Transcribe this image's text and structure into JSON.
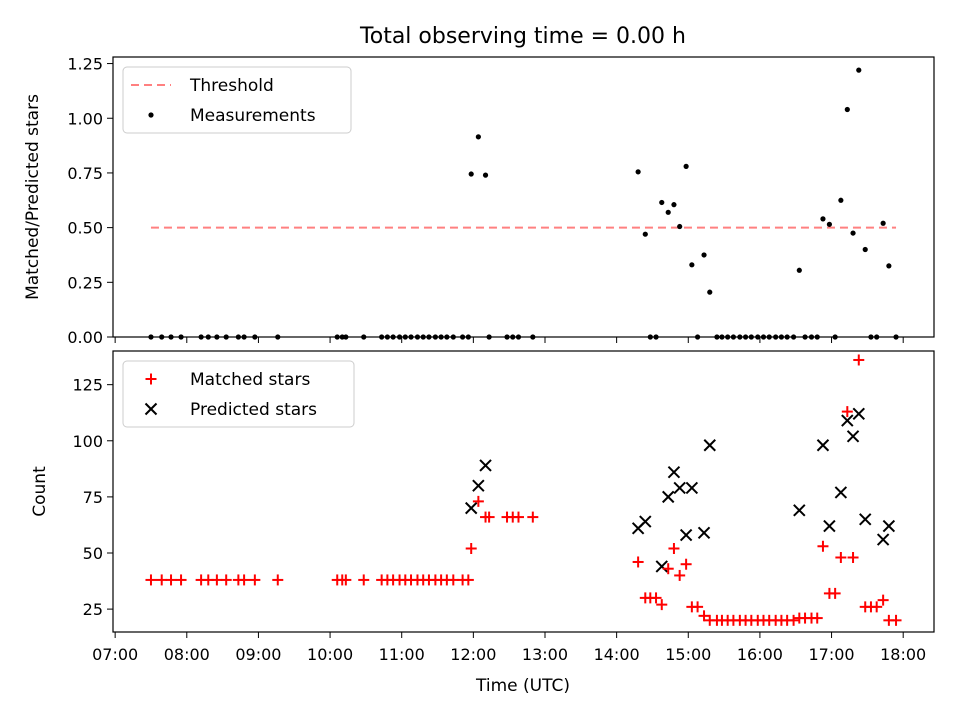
{
  "title": "Total observing time = 0.00 h",
  "xlabel": "Time (UTC)",
  "x_tick_labels": [
    "07:00",
    "08:00",
    "09:00",
    "10:00",
    "11:00",
    "12:00",
    "13:00",
    "14:00",
    "15:00",
    "16:00",
    "17:00",
    "18:00"
  ],
  "colors": {
    "threshold": "#ff8080",
    "measurements": "#000000",
    "matched": "#ff0000",
    "predicted": "#000000"
  },
  "chart_data": [
    {
      "type": "scatter",
      "panel": "top",
      "ylabel": "Matched/Predicted stars",
      "ylim": [
        0,
        1.28
      ],
      "y_tick_labels": [
        "0.00",
        "0.25",
        "0.50",
        "0.75",
        "1.00",
        "1.25"
      ],
      "x_unit": "hours UTC",
      "xlim": [
        6.97,
        18.43
      ],
      "legend": {
        "position": "top-left",
        "entries": [
          "Threshold",
          "Measurements"
        ]
      },
      "threshold": {
        "name": "Threshold",
        "y": 0.5,
        "x_range": [
          7.5,
          17.9
        ]
      },
      "series": [
        {
          "name": "Measurements",
          "points": [
            [
              7.5,
              0
            ],
            [
              7.65,
              0
            ],
            [
              7.78,
              0
            ],
            [
              7.92,
              0
            ],
            [
              8.2,
              0
            ],
            [
              8.3,
              0
            ],
            [
              8.42,
              0
            ],
            [
              8.55,
              0
            ],
            [
              8.72,
              0
            ],
            [
              8.8,
              0
            ],
            [
              8.95,
              0
            ],
            [
              9.27,
              0
            ],
            [
              10.1,
              0
            ],
            [
              10.17,
              0
            ],
            [
              10.22,
              0
            ],
            [
              10.47,
              0
            ],
            [
              10.72,
              0
            ],
            [
              10.8,
              0
            ],
            [
              10.88,
              0
            ],
            [
              10.97,
              0
            ],
            [
              11.05,
              0
            ],
            [
              11.13,
              0
            ],
            [
              11.22,
              0
            ],
            [
              11.3,
              0
            ],
            [
              11.38,
              0
            ],
            [
              11.47,
              0
            ],
            [
              11.55,
              0
            ],
            [
              11.63,
              0
            ],
            [
              11.72,
              0
            ],
            [
              11.85,
              0
            ],
            [
              11.93,
              0
            ],
            [
              11.97,
              0.745
            ],
            [
              12.07,
              0.915
            ],
            [
              12.17,
              0.74
            ],
            [
              12.22,
              0
            ],
            [
              12.47,
              0
            ],
            [
              12.55,
              0
            ],
            [
              12.63,
              0
            ],
            [
              12.83,
              0
            ],
            [
              14.3,
              0.755
            ],
            [
              14.4,
              0.47
            ],
            [
              14.47,
              0
            ],
            [
              14.55,
              0
            ],
            [
              14.63,
              0.615
            ],
            [
              14.72,
              0.57
            ],
            [
              14.8,
              0.605
            ],
            [
              14.88,
              0.505
            ],
            [
              14.97,
              0.78
            ],
            [
              15.05,
              0.33
            ],
            [
              15.13,
              0
            ],
            [
              15.22,
              0.375
            ],
            [
              15.3,
              0.205
            ],
            [
              15.4,
              0
            ],
            [
              15.47,
              0
            ],
            [
              15.55,
              0
            ],
            [
              15.63,
              0
            ],
            [
              15.72,
              0
            ],
            [
              15.8,
              0
            ],
            [
              15.88,
              0
            ],
            [
              15.97,
              0
            ],
            [
              16.05,
              0
            ],
            [
              16.13,
              0
            ],
            [
              16.22,
              0
            ],
            [
              16.3,
              0
            ],
            [
              16.38,
              0
            ],
            [
              16.47,
              0
            ],
            [
              16.55,
              0.305
            ],
            [
              16.63,
              0
            ],
            [
              16.72,
              0
            ],
            [
              16.8,
              0
            ],
            [
              16.88,
              0.54
            ],
            [
              16.97,
              0.515
            ],
            [
              17.05,
              0
            ],
            [
              17.13,
              0.625
            ],
            [
              17.22,
              1.04
            ],
            [
              17.3,
              0.475
            ],
            [
              17.38,
              1.22
            ],
            [
              17.47,
              0.4
            ],
            [
              17.55,
              0
            ],
            [
              17.63,
              0
            ],
            [
              17.72,
              0.52
            ],
            [
              17.8,
              0.325
            ],
            [
              17.9,
              0
            ]
          ]
        }
      ]
    },
    {
      "type": "scatter",
      "panel": "bottom",
      "ylabel": "Count",
      "ylim": [
        14.8,
        140
      ],
      "y_tick_labels": [
        "25",
        "50",
        "75",
        "100",
        "125"
      ],
      "x_unit": "hours UTC",
      "xlim": [
        6.97,
        18.43
      ],
      "legend": {
        "position": "top-left",
        "entries": [
          "Matched stars",
          "Predicted stars"
        ]
      },
      "series": [
        {
          "name": "Matched stars",
          "points": [
            [
              7.5,
              38
            ],
            [
              7.65,
              38
            ],
            [
              7.78,
              38
            ],
            [
              7.92,
              38
            ],
            [
              8.2,
              38
            ],
            [
              8.3,
              38
            ],
            [
              8.42,
              38
            ],
            [
              8.55,
              38
            ],
            [
              8.72,
              38
            ],
            [
              8.8,
              38
            ],
            [
              8.95,
              38
            ],
            [
              9.27,
              38
            ],
            [
              10.1,
              38
            ],
            [
              10.17,
              38
            ],
            [
              10.22,
              38
            ],
            [
              10.47,
              38
            ],
            [
              10.72,
              38
            ],
            [
              10.8,
              38
            ],
            [
              10.88,
              38
            ],
            [
              10.97,
              38
            ],
            [
              11.05,
              38
            ],
            [
              11.13,
              38
            ],
            [
              11.22,
              38
            ],
            [
              11.3,
              38
            ],
            [
              11.38,
              38
            ],
            [
              11.47,
              38
            ],
            [
              11.55,
              38
            ],
            [
              11.63,
              38
            ],
            [
              11.72,
              38
            ],
            [
              11.85,
              38
            ],
            [
              11.93,
              38
            ],
            [
              11.97,
              52
            ],
            [
              12.07,
              73
            ],
            [
              12.17,
              66
            ],
            [
              12.22,
              66
            ],
            [
              12.47,
              66
            ],
            [
              12.55,
              66
            ],
            [
              12.63,
              66
            ],
            [
              12.83,
              66
            ],
            [
              14.3,
              46
            ],
            [
              14.4,
              30
            ],
            [
              14.47,
              30
            ],
            [
              14.55,
              30
            ],
            [
              14.63,
              27
            ],
            [
              14.72,
              43
            ],
            [
              14.8,
              52
            ],
            [
              14.88,
              40
            ],
            [
              14.97,
              45
            ],
            [
              15.05,
              26
            ],
            [
              15.13,
              26
            ],
            [
              15.22,
              22
            ],
            [
              15.3,
              20
            ],
            [
              15.4,
              20
            ],
            [
              15.47,
              20
            ],
            [
              15.55,
              20
            ],
            [
              15.63,
              20
            ],
            [
              15.72,
              20
            ],
            [
              15.8,
              20
            ],
            [
              15.88,
              20
            ],
            [
              15.97,
              20
            ],
            [
              16.05,
              20
            ],
            [
              16.13,
              20
            ],
            [
              16.22,
              20
            ],
            [
              16.3,
              20
            ],
            [
              16.38,
              20
            ],
            [
              16.47,
              20
            ],
            [
              16.55,
              21
            ],
            [
              16.63,
              21
            ],
            [
              16.72,
              21
            ],
            [
              16.8,
              21
            ],
            [
              16.88,
              53
            ],
            [
              16.97,
              32
            ],
            [
              17.05,
              32
            ],
            [
              17.13,
              48
            ],
            [
              17.22,
              113
            ],
            [
              17.3,
              48
            ],
            [
              17.38,
              136
            ],
            [
              17.47,
              26
            ],
            [
              17.55,
              26
            ],
            [
              17.63,
              26
            ],
            [
              17.72,
              29
            ],
            [
              17.8,
              20
            ],
            [
              17.9,
              20
            ]
          ]
        },
        {
          "name": "Predicted stars",
          "points": [
            [
              11.97,
              70
            ],
            [
              12.07,
              80
            ],
            [
              12.17,
              89
            ],
            [
              14.3,
              61
            ],
            [
              14.4,
              64
            ],
            [
              14.63,
              44
            ],
            [
              14.72,
              75
            ],
            [
              14.8,
              86
            ],
            [
              14.88,
              79
            ],
            [
              14.97,
              58
            ],
            [
              15.05,
              79
            ],
            [
              15.22,
              59
            ],
            [
              15.3,
              98
            ],
            [
              16.55,
              69
            ],
            [
              16.88,
              98
            ],
            [
              16.97,
              62
            ],
            [
              17.13,
              77
            ],
            [
              17.22,
              109
            ],
            [
              17.3,
              102
            ],
            [
              17.38,
              112
            ],
            [
              17.47,
              65
            ],
            [
              17.72,
              56
            ],
            [
              17.8,
              62
            ]
          ]
        }
      ]
    }
  ]
}
